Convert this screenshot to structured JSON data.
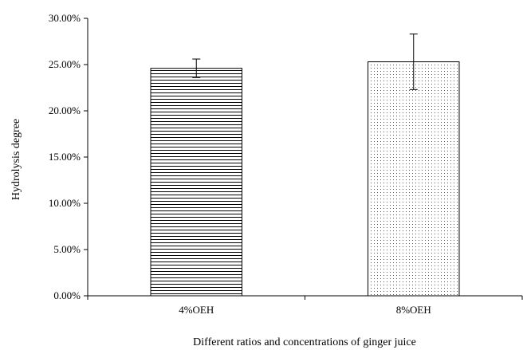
{
  "chart_data": {
    "type": "bar",
    "xlabel": "Different ratios and concentrations of ginger juice",
    "ylabel": "Hydrolysis degree",
    "ylim": [
      0,
      30
    ],
    "y_tick_values": [
      0,
      5,
      10,
      15,
      20,
      25,
      30
    ],
    "y_tick_labels": [
      "0.00%",
      "5.00%",
      "10.00%",
      "15.00%",
      "20.00%",
      "25.00%",
      "30.00%"
    ],
    "categories": [
      "4%OEH",
      "8%OEH"
    ],
    "values": [
      24.6,
      25.3
    ],
    "errors": [
      1.0,
      3.0
    ],
    "grid": false,
    "bar_fills": [
      "horizontal-stripes",
      "dots"
    ],
    "colors": {
      "stroke": "#000000",
      "background": "#ffffff"
    }
  }
}
